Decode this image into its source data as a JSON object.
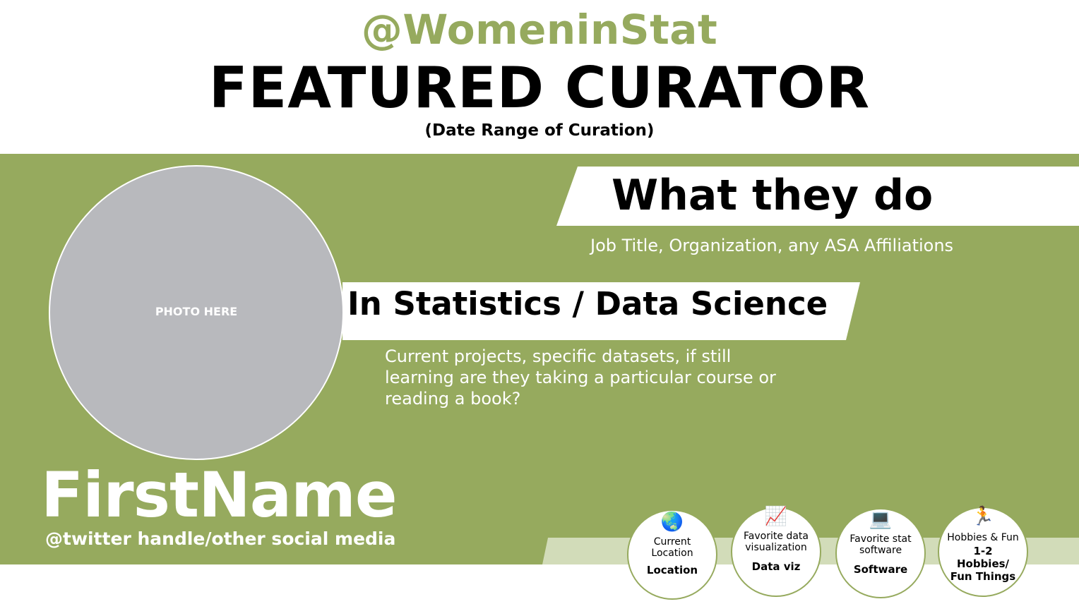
{
  "header": {
    "handle": "@WomeninStat",
    "title": "FEATURED CURATOR",
    "date_range": "(Date Range of Curation)"
  },
  "photo": {
    "label": "PHOTO HERE"
  },
  "what_they_do": {
    "heading": "What they do",
    "detail": "Job Title, Organization, any ASA Affiliations"
  },
  "in_stats": {
    "heading": "In Statistics / Data Science",
    "detail": "Current projects, specific datasets, if still learning are they taking a particular course or reading a book?"
  },
  "person": {
    "first_name": "FirstName",
    "social": "@twitter handle/other social media"
  },
  "colors": {
    "accent": "#96aa5e",
    "pale_accent": "#d2dcb9",
    "photo_gray": "#b8b9bd"
  },
  "facts": [
    {
      "icon": "🌏",
      "icon_name": "globe-icon",
      "label": "Current Location",
      "value": "Location"
    },
    {
      "icon": "📈",
      "icon_name": "chart-increasing-icon",
      "label": "Favorite data visualization",
      "value": "Data viz"
    },
    {
      "icon": "💻",
      "icon_name": "laptop-icon",
      "label": "Favorite stat software",
      "value": "Software"
    },
    {
      "icon": "🏃",
      "icon_name": "runner-icon",
      "label": "Hobbies & Fun",
      "value": "1-2 Hobbies/ Fun Things"
    }
  ]
}
